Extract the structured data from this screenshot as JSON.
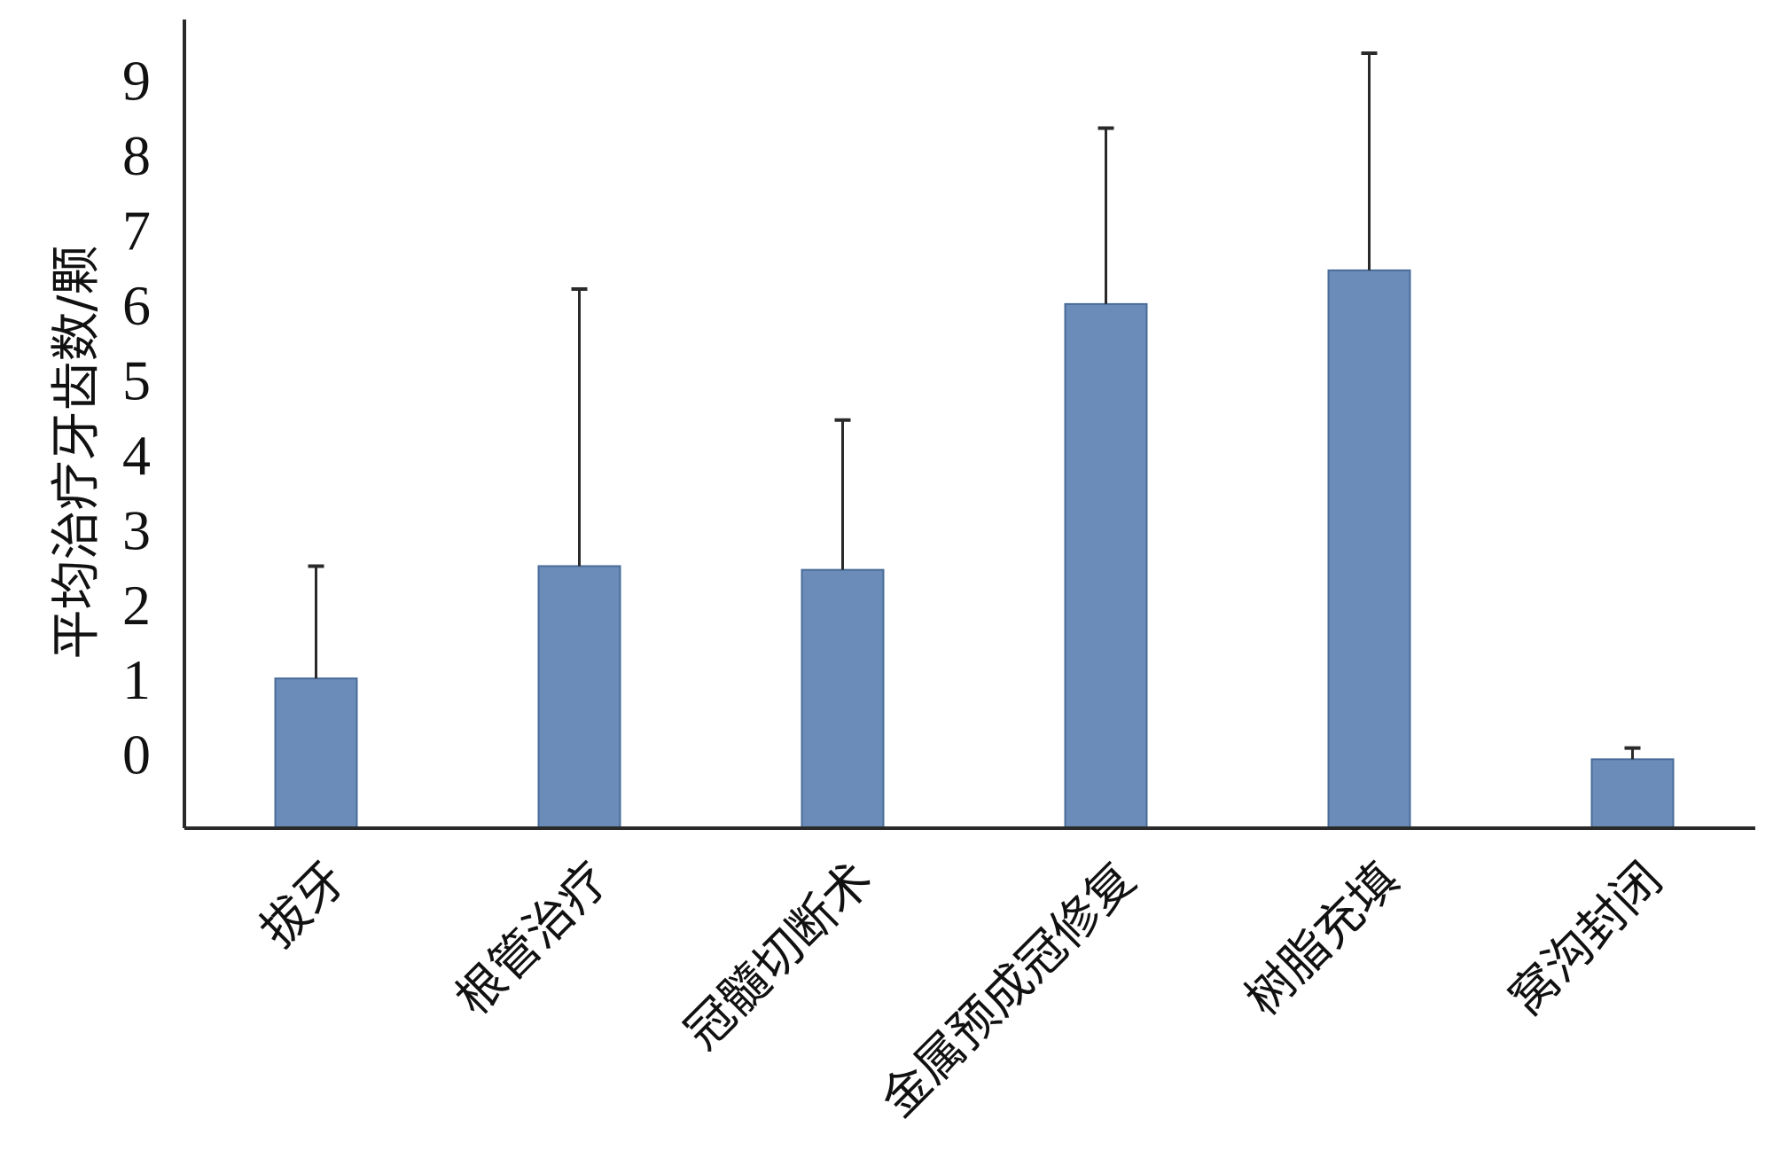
{
  "chart_data": {
    "type": "bar",
    "title": "",
    "xlabel": "",
    "ylabel": "平均治疗牙齿数/颗",
    "categories": [
      "拔牙",
      "根管治疗",
      "冠髓切断术",
      "金属预成冠修复",
      "树脂充填",
      "窝沟封闭"
    ],
    "series": [
      {
        "values": [
          1.1,
          2.6,
          2.55,
          6.1,
          6.55,
          0.02
        ],
        "error_upper": [
          2.6,
          6.3,
          4.55,
          8.45,
          9.45,
          0.17
        ]
      }
    ],
    "y_tick_labels": [
      "0",
      "1",
      "2",
      "3",
      "4",
      "5",
      "6",
      "7",
      "8",
      "9"
    ],
    "ylim": [
      -0.9,
      9.9
    ],
    "grid": false,
    "legend": "none",
    "bar_color": "#6b8cb8",
    "bar_edge_color": "#4a6c9a",
    "error_bar_color": "#2a2a2a",
    "axis_color": "#2a2a2a"
  }
}
